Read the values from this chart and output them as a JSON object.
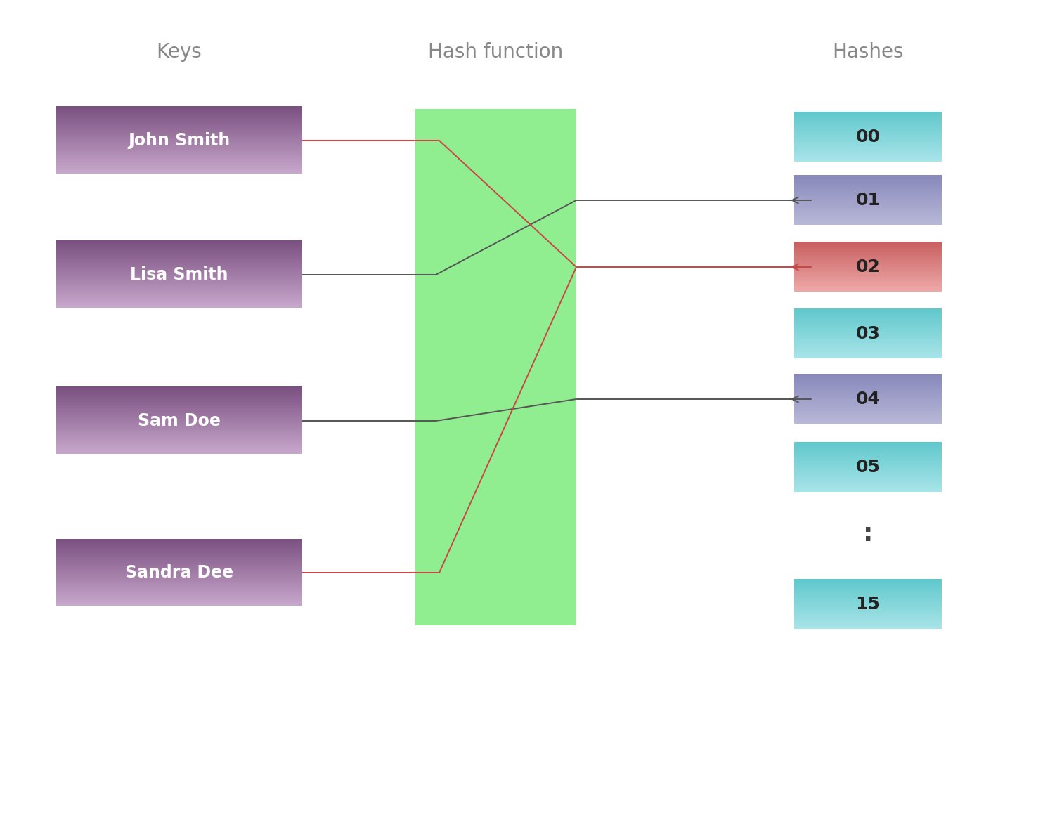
{
  "keys_label": "Keys",
  "hash_function_label": "Hash function",
  "hashes_label": "Hashes",
  "keys": [
    "John Smith",
    "Lisa Smith",
    "Sam Doe",
    "Sandra Dee"
  ],
  "hash_labels": [
    "00",
    "01",
    "02",
    "03",
    "04",
    "05",
    ":",
    "15"
  ],
  "key_grad_top": "#7A5080",
  "key_grad_bottom": "#C8A8CC",
  "hash_fn_color": "#90ee90",
  "hash_00_top": "#60C8CC",
  "hash_00_bottom": "#A8E4E8",
  "hash_01_top": "#8888BB",
  "hash_01_bottom": "#B8B8D8",
  "hash_02_top": "#C86060",
  "hash_02_bottom": "#EEA8A8",
  "hash_03_top": "#60C8CC",
  "hash_03_bottom": "#A8E4E8",
  "hash_04_top": "#8888BB",
  "hash_04_bottom": "#B8B8D8",
  "hash_05_top": "#60C8CC",
  "hash_05_bottom": "#A8E4E8",
  "hash_15_top": "#60C8CC",
  "hash_15_bottom": "#A8E4E8",
  "background_color": "#ffffff",
  "label_color": "#888888",
  "gray_line_color": "#555555",
  "red_line_color": "#cc4444",
  "figsize": [
    14.94,
    11.94
  ],
  "dpi": 100
}
